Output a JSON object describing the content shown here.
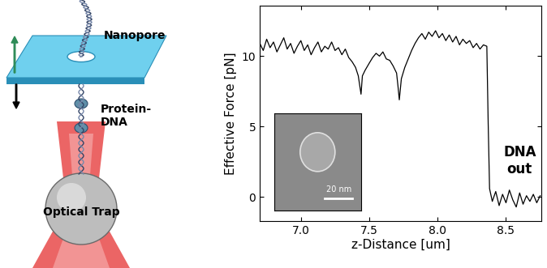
{
  "chart_data": {
    "type": "line",
    "x_label": "z-Distance [um]",
    "y_label": "Effective Force [pN]",
    "color": "#000000",
    "x": [
      6.7,
      6.725,
      6.75,
      6.775,
      6.8,
      6.825,
      6.85,
      6.875,
      6.9,
      6.925,
      6.95,
      6.975,
      7.0,
      7.025,
      7.05,
      7.075,
      7.1,
      7.125,
      7.15,
      7.175,
      7.2,
      7.225,
      7.25,
      7.275,
      7.3,
      7.325,
      7.35,
      7.375,
      7.4,
      7.42,
      7.44,
      7.45,
      7.47,
      7.5,
      7.525,
      7.55,
      7.575,
      7.6,
      7.625,
      7.65,
      7.675,
      7.7,
      7.71,
      7.72,
      7.735,
      7.76,
      7.785,
      7.81,
      7.835,
      7.86,
      7.885,
      7.91,
      7.935,
      7.96,
      7.985,
      8.01,
      8.035,
      8.06,
      8.085,
      8.11,
      8.135,
      8.16,
      8.185,
      8.21,
      8.235,
      8.26,
      8.285,
      8.31,
      8.335,
      8.36,
      8.37,
      8.38,
      8.4,
      8.425,
      8.45,
      8.475,
      8.5,
      8.525,
      8.55,
      8.575,
      8.6,
      8.625,
      8.65,
      8.675,
      8.7,
      8.725,
      8.75
    ],
    "values": [
      10.9,
      10.4,
      11.2,
      10.6,
      11.0,
      10.3,
      10.8,
      11.3,
      10.5,
      10.9,
      10.2,
      10.7,
      11.1,
      10.4,
      10.8,
      10.1,
      10.6,
      11.0,
      10.3,
      10.7,
      10.5,
      11.0,
      10.4,
      10.6,
      10.1,
      10.5,
      9.9,
      9.6,
      9.2,
      8.6,
      7.3,
      8.6,
      9.0,
      9.5,
      9.9,
      10.2,
      10.0,
      10.3,
      9.8,
      9.7,
      9.3,
      8.8,
      7.9,
      6.9,
      8.4,
      9.2,
      9.8,
      10.4,
      10.9,
      11.3,
      11.6,
      11.2,
      11.7,
      11.4,
      11.8,
      11.3,
      11.6,
      11.1,
      11.5,
      11.0,
      11.4,
      10.8,
      11.2,
      10.9,
      11.1,
      10.6,
      10.9,
      10.5,
      10.8,
      10.7,
      5.2,
      0.6,
      -0.3,
      0.4,
      -0.6,
      0.2,
      -0.4,
      0.5,
      -0.2,
      -0.7,
      0.3,
      -0.5,
      0.1,
      -0.3,
      0.2,
      -0.4,
      0.1
    ],
    "xlim": [
      6.7,
      8.76
    ],
    "ylim": [
      -1.7,
      13.6
    ],
    "xticks": [
      {
        "value": 7.0,
        "label": "7.0"
      },
      {
        "value": 7.5,
        "label": "7.5"
      },
      {
        "value": 8.0,
        "label": "8.0"
      },
      {
        "value": 8.5,
        "label": "8.5"
      }
    ],
    "yticks": [
      0,
      5,
      10
    ],
    "annotations": [
      "DNA\nout",
      "20 nm"
    ]
  },
  "diagram": {
    "labels": [
      "Nanopore",
      "Protein-\nDNA",
      "Optical Trap"
    ]
  }
}
